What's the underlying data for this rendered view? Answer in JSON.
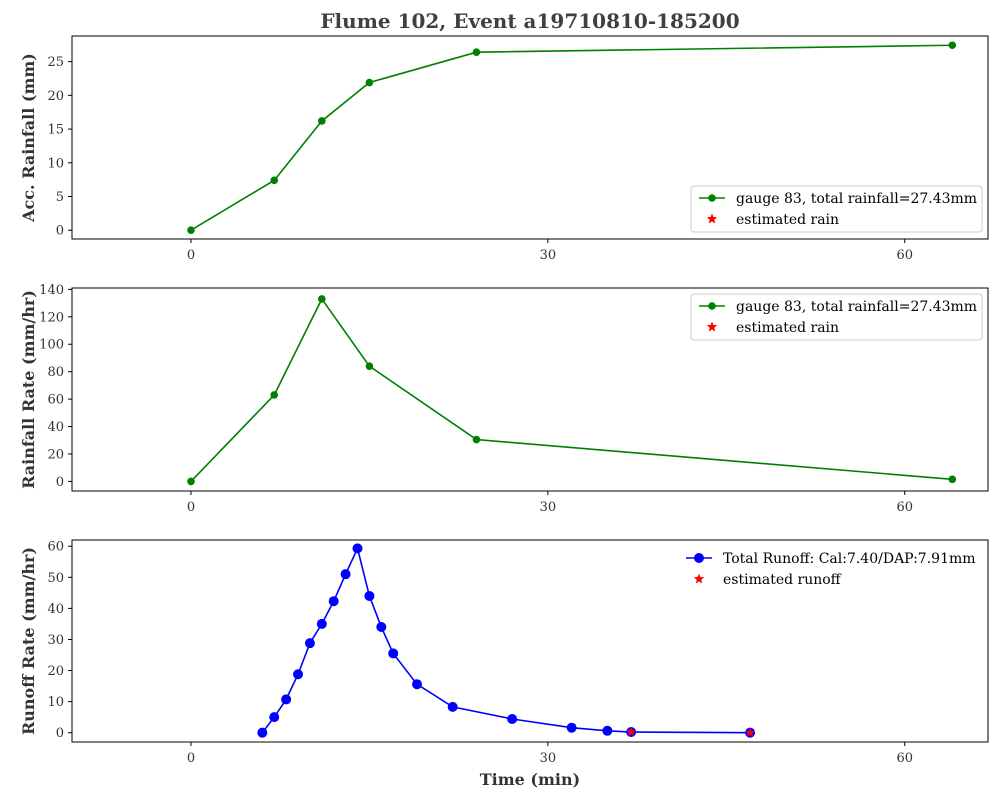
{
  "chart_data": {
    "title": "Flume 102, Event a19710810-185200",
    "xlabel": "Time (min)",
    "xlim": [
      -10,
      67
    ],
    "xticks": [
      0,
      30,
      60
    ],
    "panels": [
      {
        "type": "line",
        "ylabel": "Acc. Rainfall (mm)",
        "ylim": [
          -1.3,
          28.8
        ],
        "yticks": [
          0,
          5,
          10,
          15,
          20,
          25
        ],
        "legend_position": "lower-right",
        "series": [
          {
            "name": "gauge 83, total rainfall=27.43mm",
            "color": "#008000",
            "marker": "circle",
            "x": [
              0,
              7,
              11,
              15,
              24,
              64
            ],
            "y": [
              0,
              7.4,
              16.2,
              21.9,
              26.4,
              27.43
            ]
          }
        ],
        "legend": [
          {
            "label": "gauge 83, total rainfall=27.43mm",
            "color": "#008000",
            "marker": "circle-line"
          },
          {
            "label": "estimated rain",
            "color": "#ff0000",
            "marker": "star"
          }
        ]
      },
      {
        "type": "line",
        "ylabel": "Rainfall Rate (mm/hr)",
        "ylim": [
          -7,
          141
        ],
        "yticks": [
          0,
          20,
          40,
          60,
          80,
          100,
          120,
          140
        ],
        "legend_position": "upper-right",
        "series": [
          {
            "name": "gauge 83, total rainfall=27.43mm",
            "color": "#008000",
            "marker": "circle",
            "x": [
              0,
              7,
              11,
              15,
              24,
              64
            ],
            "y": [
              0,
              63,
              133,
              84,
              30.5,
              1.5
            ]
          }
        ],
        "legend": [
          {
            "label": "gauge 83, total rainfall=27.43mm",
            "color": "#008000",
            "marker": "circle-line"
          },
          {
            "label": "estimated rain",
            "color": "#ff0000",
            "marker": "star"
          }
        ]
      },
      {
        "type": "line",
        "ylabel": "Runoff Rate (mm/hr)",
        "ylim": [
          -3,
          62
        ],
        "yticks": [
          0,
          10,
          20,
          30,
          40,
          50,
          60
        ],
        "legend_position": "upper-right",
        "series": [
          {
            "name": "Total Runoff: Cal:7.40/DAP:7.91mm",
            "color": "#0000ff",
            "marker": "circle",
            "x": [
              6,
              7,
              8,
              9,
              10,
              11,
              12,
              13,
              14,
              15,
              16,
              17,
              19,
              22,
              27,
              32,
              35,
              37,
              47
            ],
            "y": [
              0,
              5,
              10.7,
              18.8,
              28.8,
              35,
              42.3,
              51,
              59.3,
              44,
              34,
              25.5,
              15.6,
              8.3,
              4.4,
              1.6,
              0.6,
              0.2,
              0
            ]
          }
        ],
        "estimated": {
          "name": "estimated runoff",
          "color": "#ff0000",
          "x": [
            37,
            47
          ],
          "y": [
            0.2,
            0
          ]
        },
        "legend": [
          {
            "label": "Total Runoff: Cal:7.40/DAP:7.91mm",
            "color": "#0000ff",
            "marker": "circle-line"
          },
          {
            "label": "estimated runoff",
            "color": "#ff0000",
            "marker": "star"
          }
        ]
      }
    ]
  }
}
